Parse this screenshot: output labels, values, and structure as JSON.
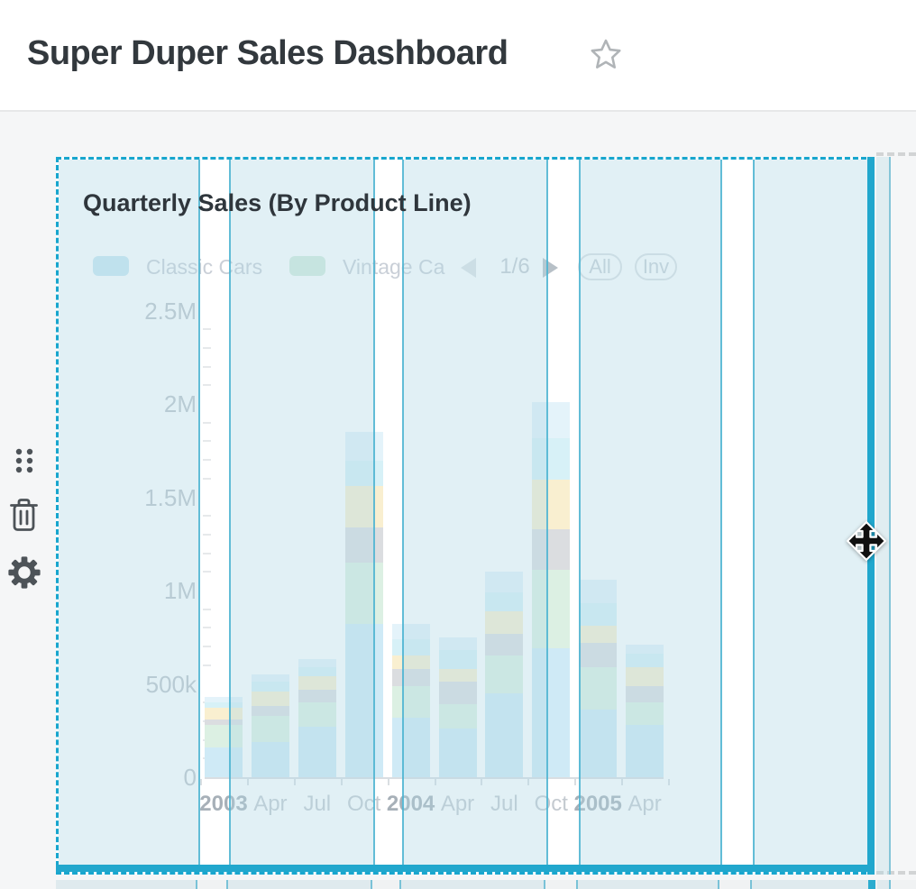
{
  "header": {
    "title": "Super Duper Sales Dashboard"
  },
  "icons": {
    "favorite": "star-outline",
    "drag": "six-dots-handle",
    "delete": "trash-can",
    "settings": "gear",
    "legend_prev": "chevron-left",
    "legend_next": "chevron-right",
    "cursor": "move-arrows"
  },
  "card": {
    "title": "Quarterly Sales (By Product Line)",
    "legend": {
      "items": [
        {
          "label": "Classic Cars",
          "color": "#c9e7f2"
        },
        {
          "label": "Vintage Ca",
          "color": "#d4ecdd"
        }
      ],
      "pagination": {
        "label": "1/6",
        "prev_enabled": false,
        "next_enabled": true
      },
      "buttons": [
        {
          "label": "All"
        },
        {
          "label": "Inv"
        }
      ]
    },
    "chart_data": {
      "type": "bar",
      "stacked": true,
      "title": "Quarterly Sales (By Product Line)",
      "categories": [
        "2003",
        "Apr",
        "Jul",
        "Oct",
        "2004",
        "Apr",
        "Jul",
        "Oct",
        "2005",
        "Apr"
      ],
      "year_indices": [
        0,
        4,
        8
      ],
      "series": [
        {
          "name": "Classic Cars",
          "color": "#cfeaf6",
          "values": [
            0.16,
            0.19,
            0.27,
            0.82,
            0.32,
            0.26,
            0.45,
            0.69,
            0.36,
            0.28
          ]
        },
        {
          "name": "Vintage Ca",
          "color": "#dcf0e3",
          "values": [
            0.12,
            0.14,
            0.13,
            0.33,
            0.17,
            0.13,
            0.2,
            0.42,
            0.23,
            0.12
          ]
        },
        {
          "name": "",
          "color": "#dbdde0",
          "values": [
            0.03,
            0.05,
            0.07,
            0.19,
            0.09,
            0.12,
            0.12,
            0.22,
            0.13,
            0.09
          ]
        },
        {
          "name": "",
          "color": "#f9efd0",
          "values": [
            0.06,
            0.08,
            0.07,
            0.22,
            0.07,
            0.07,
            0.12,
            0.265,
            0.09,
            0.1
          ]
        },
        {
          "name": "",
          "color": "#d7f1f7",
          "values": [
            0.03,
            0.05,
            0.05,
            0.135,
            0.09,
            0.1,
            0.1,
            0.22,
            0.12,
            0.07
          ]
        },
        {
          "name": "",
          "color": "#e4f3fa",
          "values": [
            0.03,
            0.04,
            0.045,
            0.155,
            0.08,
            0.07,
            0.11,
            0.195,
            0.13,
            0.05
          ]
        }
      ],
      "xlabel": "",
      "ylabel": "",
      "unit": "M",
      "ylim": [
        0,
        2.5
      ],
      "y_ticks": [
        {
          "value": 0,
          "label": "0"
        },
        {
          "value": 0.5,
          "label": "500k"
        },
        {
          "value": 1,
          "label": "1M"
        },
        {
          "value": 1.5,
          "label": "1.5M"
        },
        {
          "value": 2,
          "label": "2M"
        },
        {
          "value": 2.5,
          "label": "2.5M"
        }
      ],
      "grid": true,
      "legend_position": "top"
    }
  },
  "colors": {
    "selection_accent": "#18a6ce",
    "resize_edge": "#21a7cd",
    "grid_guide_line": "#4db4d2",
    "grid_guide_tint": "#e3f1f5",
    "page_background": "#f5f6f7",
    "title_text": "#32383d",
    "axis_text": "#bdc4ca",
    "icon_color": "#4d5358"
  }
}
